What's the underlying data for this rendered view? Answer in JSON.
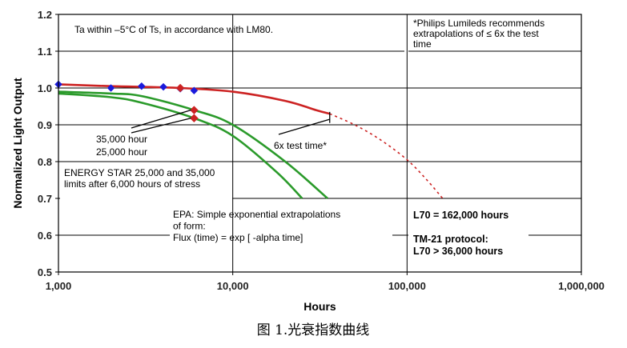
{
  "chart_data": {
    "type": "line",
    "title": "",
    "xlabel": "Hours",
    "ylabel": "Normalized Light Output",
    "x_scale": "log",
    "xlim": [
      1000,
      1000000
    ],
    "ylim": [
      0.5,
      1.2
    ],
    "x_ticks": [
      1000,
      10000,
      100000,
      1000000
    ],
    "x_tick_labels": [
      "1,000",
      "10,000",
      "100,000",
      "1,000,000"
    ],
    "y_ticks": [
      0.5,
      0.6,
      0.7,
      0.8,
      0.9,
      1.0,
      1.1,
      1.2
    ],
    "y_tick_labels": [
      "0.5",
      "0.6",
      "0.7",
      "0.8",
      "0.9",
      "1.0",
      "1.1",
      "1.2"
    ],
    "grid": true,
    "series": [
      {
        "id": "lm80-measured",
        "color": "#1a1adc",
        "style": "markers",
        "marker": "diamond",
        "points": [
          [
            1000,
            1.01
          ],
          [
            2000,
            1.0
          ],
          [
            3000,
            1.005
          ],
          [
            4000,
            1.003
          ],
          [
            5000,
            0.998
          ],
          [
            6000,
            0.993
          ]
        ]
      },
      {
        "id": "exponential-extrapolation",
        "color": "#cc2222",
        "style": "solid",
        "points": [
          [
            1000,
            1.01
          ],
          [
            2000,
            1.005
          ],
          [
            5000,
            1.0
          ],
          [
            10000,
            0.99
          ],
          [
            20000,
            0.965
          ],
          [
            30000,
            0.94
          ],
          [
            36000,
            0.93
          ]
        ]
      },
      {
        "id": "exponential-extrapolation-beyond-6x",
        "color": "#cc2222",
        "style": "dotted",
        "points": [
          [
            36000,
            0.93
          ],
          [
            50000,
            0.9
          ],
          [
            70000,
            0.86
          ],
          [
            100000,
            0.805
          ],
          [
            130000,
            0.75
          ],
          [
            160000,
            0.7
          ]
        ]
      },
      {
        "id": "energy-star-35000-hour",
        "color": "#2a9a2a",
        "style": "solid",
        "points": [
          [
            1000,
            0.99
          ],
          [
            2000,
            0.985
          ],
          [
            3000,
            0.978
          ],
          [
            6000,
            0.94
          ],
          [
            10000,
            0.9
          ],
          [
            20000,
            0.8
          ],
          [
            35000,
            0.7
          ]
        ]
      },
      {
        "id": "energy-star-25000-hour",
        "color": "#2a9a2a",
        "style": "solid",
        "points": [
          [
            1000,
            0.985
          ],
          [
            2000,
            0.975
          ],
          [
            3000,
            0.96
          ],
          [
            6000,
            0.918
          ],
          [
            10000,
            0.87
          ],
          [
            18000,
            0.77
          ],
          [
            25000,
            0.7
          ]
        ]
      },
      {
        "id": "energy-star-6000-hour-markers",
        "color": "#cc2222",
        "style": "markers",
        "marker": "diamond",
        "points": [
          [
            5000,
            1.0
          ],
          [
            6000,
            0.94
          ],
          [
            6000,
            0.918
          ]
        ]
      }
    ],
    "annotations": {
      "ta_note": "Ta within –5°C of Ts, in accordance with LM80.",
      "philips_note": [
        "*Philips Lumileds recommends",
        "extrapolations of ≤ 6x the test",
        "time"
      ],
      "hours_35000": "35,000 hour",
      "hours_25000": "25,000 hour",
      "energy_star": [
        "ENERGY STAR 25,000 and 35,000",
        "limits after 6,000 hours of stress"
      ],
      "six_x": "6x test time*",
      "epa": [
        "EPA: Simple exponential extrapolations",
        "of form:",
        "Flux (time) = exp [ -alpha time]"
      ],
      "l70": "L70 = 162,000 hours",
      "tm21": [
        "TM-21 protocol:",
        "L70 > 36,000 hours"
      ]
    },
    "six_x_marker_hours": 36000
  },
  "caption": "图 1.光衰指数曲线"
}
